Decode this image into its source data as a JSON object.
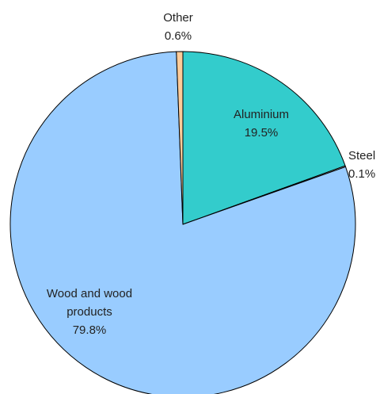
{
  "chart_data": {
    "type": "pie",
    "title": "",
    "slices": [
      {
        "label": "Aluminium",
        "pct_label": "19.5%",
        "value": 19.5,
        "color": "#33CCCC"
      },
      {
        "label": "Steel",
        "pct_label": "0.1%",
        "value": 0.1,
        "color": "#EEEEEE"
      },
      {
        "label": "Wood and wood products",
        "label_lines": [
          "Wood and wood",
          "products"
        ],
        "pct_label": "79.8%",
        "value": 79.8,
        "color": "#99CCFF"
      },
      {
        "label": "Other",
        "pct_label": "0.6%",
        "value": 0.6,
        "color": "#FFCC99"
      }
    ],
    "start_angle": "12 o'clock",
    "direction": "clockwise",
    "stroke_color": "#000000"
  }
}
